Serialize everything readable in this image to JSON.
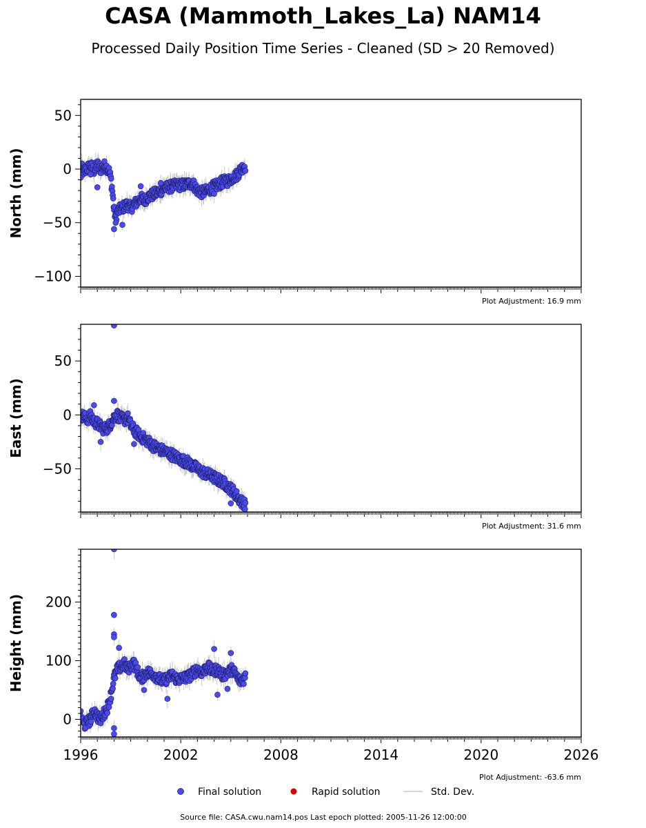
{
  "title": "CASA (Mammoth_Lakes_La) NAM14",
  "subtitle": "Processed Daily Position Time Series - Cleaned (SD > 20 Removed)",
  "source_note": "Source file: CASA.cwu.nam14.pos  Last epoch plotted: 2005-11-26 12:00:00",
  "legend": {
    "final": "Final solution",
    "rapid": "Rapid solution",
    "stddev": "Std. Dev."
  },
  "colors": {
    "final": "#4a4af0",
    "final_edge": "#1a1a55",
    "rapid": "#dd0000",
    "stddev": "#c8c8c8"
  },
  "chart_data": [
    {
      "type": "scatter",
      "component": "north",
      "ylabel": "North (mm)",
      "ylim": [
        -110,
        65
      ],
      "yticks": [
        50,
        0,
        -50,
        -100
      ],
      "xlim": [
        1996,
        2026
      ],
      "adjustment": "Plot Adjustment: 16.9 mm",
      "series": [
        {
          "name": "Final solution",
          "x": [
            1996.0,
            1996.2,
            1996.4,
            1996.6,
            1996.8,
            1997.0,
            1997.2,
            1997.4,
            1997.6,
            1997.7,
            1997.8,
            1997.9,
            1998.0,
            1998.1,
            1998.2,
            1998.4,
            1998.6,
            1998.8,
            1999.0,
            1999.2,
            1999.4,
            1999.6,
            1999.8,
            2000.0,
            2000.3,
            2000.6,
            2000.9,
            2001.2,
            2001.5,
            2001.8,
            2002.1,
            2002.4,
            2002.7,
            2003.0,
            2003.3,
            2003.6,
            2003.9,
            2004.2,
            2004.5,
            2004.8,
            2005.1,
            2005.4,
            2005.6,
            2005.8,
            2005.9
          ],
          "y": [
            2,
            -3,
            1,
            3,
            -1,
            4,
            0,
            3,
            1,
            -2,
            -8,
            -20,
            -38,
            -45,
            -40,
            -37,
            -35,
            -33,
            -36,
            -33,
            -30,
            -27,
            -30,
            -26,
            -24,
            -22,
            -19,
            -17,
            -16,
            -15,
            -15,
            -14,
            -13,
            -20,
            -22,
            -20,
            -17,
            -15,
            -12,
            -11,
            -8,
            -5,
            0,
            3,
            3
          ]
        }
      ],
      "outliers": [
        [
          1996.0,
          -8
        ],
        [
          1996.6,
          -5
        ],
        [
          1997.0,
          -17
        ],
        [
          1998.0,
          -56
        ],
        [
          1998.1,
          -50
        ],
        [
          1998.5,
          -52
        ],
        [
          1999.6,
          -16
        ],
        [
          2000.8,
          -13
        ],
        [
          2004.0,
          -23
        ]
      ]
    },
    {
      "type": "scatter",
      "component": "east",
      "ylabel": "East (mm)",
      "ylim": [
        -90,
        84
      ],
      "yticks": [
        50,
        0,
        -50
      ],
      "xlim": [
        1996,
        2026
      ],
      "adjustment": "Plot Adjustment: 31.6 mm",
      "series": [
        {
          "name": "Final solution",
          "x": [
            1996.0,
            1996.2,
            1996.4,
            1996.6,
            1996.8,
            1997.0,
            1997.2,
            1997.4,
            1997.6,
            1997.8,
            1998.0,
            1998.2,
            1998.4,
            1998.6,
            1998.8,
            1999.0,
            1999.2,
            1999.4,
            1999.6,
            1999.8,
            2000.0,
            2000.3,
            2000.6,
            2000.9,
            2001.2,
            2001.5,
            2001.8,
            2002.1,
            2002.4,
            2002.7,
            2003.0,
            2003.3,
            2003.6,
            2003.9,
            2004.2,
            2004.5,
            2004.8,
            2005.1,
            2005.4,
            2005.6,
            2005.8,
            2005.9
          ],
          "y": [
            0,
            -2,
            -4,
            -1,
            -6,
            -8,
            -11,
            -13,
            -12,
            -8,
            -2,
            0,
            -3,
            -5,
            -2,
            -10,
            -14,
            -17,
            -20,
            -22,
            -24,
            -28,
            -31,
            -33,
            -35,
            -37,
            -40,
            -42,
            -44,
            -47,
            -50,
            -53,
            -55,
            -57,
            -60,
            -62,
            -66,
            -70,
            -76,
            -80,
            -82,
            -83
          ]
        }
      ],
      "outliers": [
        [
          1998.0,
          83
        ],
        [
          1998.0,
          13
        ],
        [
          1996.8,
          9
        ],
        [
          1997.2,
          -25
        ],
        [
          1999.2,
          -27
        ],
        [
          2005.0,
          -82
        ]
      ]
    },
    {
      "type": "scatter",
      "component": "height",
      "ylabel": "Height (mm)",
      "ylim": [
        -30,
        290
      ],
      "yticks": [
        200,
        100,
        0
      ],
      "xlim": [
        1996,
        2026
      ],
      "xticks": [
        1996,
        2002,
        2008,
        2014,
        2020,
        2026
      ],
      "adjustment": "Plot Adjustment: -63.6 mm",
      "series": [
        {
          "name": "Final solution",
          "x": [
            1996.0,
            1996.2,
            1996.4,
            1996.6,
            1996.8,
            1997.0,
            1997.2,
            1997.4,
            1997.6,
            1997.8,
            1998.0,
            1998.2,
            1998.4,
            1998.6,
            1998.8,
            1999.0,
            1999.2,
            1999.4,
            1999.6,
            1999.8,
            2000.0,
            2000.3,
            2000.6,
            2000.9,
            2001.2,
            2001.5,
            2001.8,
            2002.1,
            2002.4,
            2002.7,
            2003.0,
            2003.3,
            2003.6,
            2003.9,
            2004.2,
            2004.5,
            2004.8,
            2005.1,
            2005.4,
            2005.6,
            2005.8,
            2005.9
          ],
          "y": [
            5,
            -10,
            -5,
            0,
            15,
            5,
            0,
            10,
            20,
            40,
            70,
            85,
            90,
            95,
            85,
            92,
            95,
            82,
            70,
            75,
            80,
            78,
            72,
            65,
            70,
            75,
            68,
            70,
            72,
            78,
            85,
            80,
            90,
            82,
            85,
            75,
            80,
            85,
            70,
            65,
            70,
            75
          ]
        }
      ],
      "outliers": [
        [
          1998.0,
          290
        ],
        [
          1998.0,
          178
        ],
        [
          1998.0,
          145
        ],
        [
          1998.0,
          140
        ],
        [
          1998.0,
          -15
        ],
        [
          1998.0,
          -25
        ],
        [
          1998.3,
          122
        ],
        [
          1999.8,
          50
        ],
        [
          2001.2,
          35
        ],
        [
          2004.0,
          120
        ],
        [
          2004.2,
          42
        ],
        [
          2005.0,
          113
        ],
        [
          2004.8,
          52
        ]
      ]
    }
  ]
}
